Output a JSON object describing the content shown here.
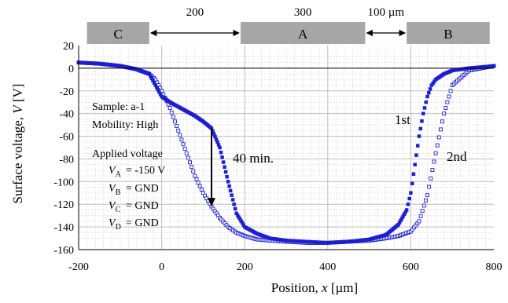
{
  "chart_data": {
    "type": "scatter",
    "xlabel": "Position, x [µm]",
    "ylabel": "Surface voltage, V [V]",
    "xlim": [
      -200,
      800
    ],
    "ylim": [
      -160,
      20
    ],
    "x_ticks": [
      "-200",
      "0",
      "200",
      "400",
      "600",
      "800"
    ],
    "y_ticks": [
      "20",
      "0",
      "-20",
      "-40",
      "-60",
      "-80",
      "-100",
      "-120",
      "-140",
      "-160"
    ],
    "grid": true,
    "marker_color": "#1f1fd0",
    "electrode_color": "#a6a6a6",
    "electrodes": [
      {
        "label": "C",
        "x_start": -180,
        "x_end": -30
      },
      {
        "label": "A",
        "x_start": 190,
        "x_end": 490
      },
      {
        "label": "B",
        "x_start": 590,
        "x_end": 790
      }
    ],
    "dimensions": [
      {
        "label": "200",
        "x_start": -30,
        "x_end": 190
      },
      {
        "label": "300",
        "x_start": 190,
        "x_end": 490
      },
      {
        "label": "100 µm",
        "x_start": 490,
        "x_end": 590
      }
    ],
    "series": [
      {
        "name": "1st",
        "marker": "filled",
        "x": [
          -200,
          -150,
          -100,
          -60,
          -30,
          -15,
          0,
          20,
          50,
          80,
          100,
          120,
          140,
          160,
          180,
          200,
          230,
          260,
          300,
          350,
          400,
          450,
          500,
          540,
          570,
          590,
          600,
          610,
          620,
          630,
          640,
          650,
          660,
          680,
          700,
          740,
          800
        ],
        "y": [
          5,
          4,
          2,
          -1,
          -5,
          -15,
          -25,
          -30,
          -36,
          -42,
          -47,
          -53,
          -70,
          -100,
          -128,
          -140,
          -146,
          -150,
          -152,
          -153,
          -154,
          -153,
          -151,
          -147,
          -138,
          -125,
          -110,
          -85,
          -60,
          -40,
          -25,
          -15,
          -10,
          -5,
          -2,
          0,
          2
        ]
      },
      {
        "name": "2nd",
        "marker": "open",
        "x": [
          -200,
          -150,
          -100,
          -60,
          -30,
          -15,
          0,
          20,
          40,
          60,
          80,
          100,
          120,
          140,
          160,
          180,
          200,
          230,
          260,
          300,
          350,
          400,
          450,
          500,
          540,
          570,
          600,
          620,
          640,
          660,
          680,
          700,
          740,
          800
        ],
        "y": [
          5,
          4,
          2,
          -1,
          -5,
          -10,
          -20,
          -35,
          -55,
          -75,
          -95,
          -110,
          -122,
          -132,
          -140,
          -145,
          -148,
          -151,
          -152,
          -153,
          -154,
          -154,
          -153,
          -152,
          -150,
          -148,
          -144,
          -135,
          -112,
          -75,
          -40,
          -15,
          -2,
          2
        ]
      }
    ],
    "arrow": {
      "x": 120,
      "y_start": -53,
      "y_end": -122
    },
    "annotations": {
      "series1_label": "1st",
      "series2_label": "2nd",
      "time_label": "40 min.",
      "sample": "Sample: a-1",
      "mobility": "Mobility: High",
      "applied": "Applied voltage",
      "va": "= -150 V",
      "vb": "= GND",
      "vc": "= GND",
      "vd": "= GND"
    }
  }
}
